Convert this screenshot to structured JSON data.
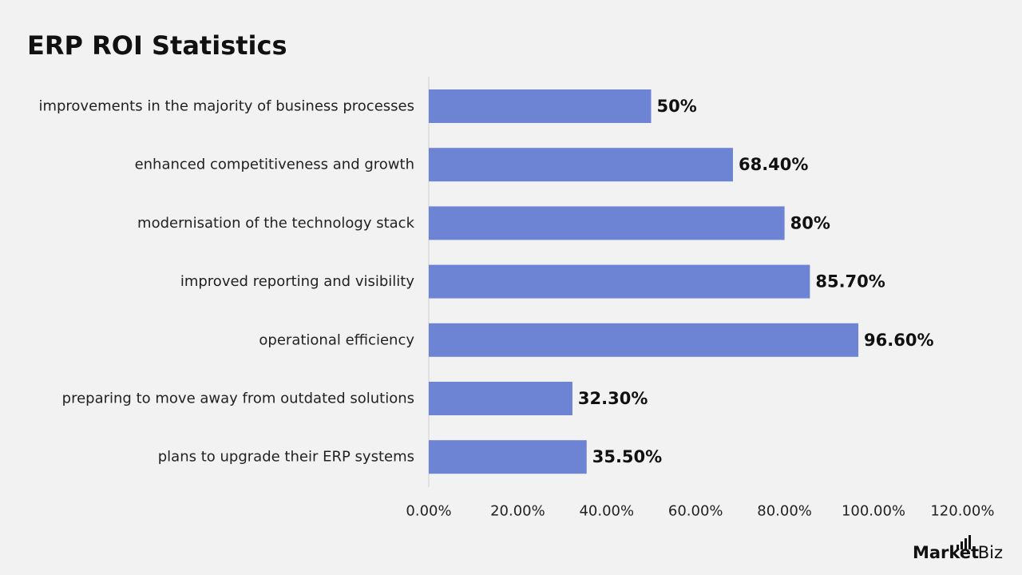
{
  "colors": {
    "background": "#f2f2f2",
    "bar": "#6d83d4",
    "text": "#111111",
    "axis": "#d0d0d0"
  },
  "brand": {
    "mark": "Market",
    "suffix": ".Biz"
  },
  "chart_data": {
    "type": "bar",
    "orientation": "horizontal",
    "title": "ERP ROI Statistics",
    "categories": [
      "improvements in the majority of business processes",
      "enhanced competitiveness and growth",
      "modernisation of the technology stack",
      "improved reporting and visibility",
      "operational efficiency",
      "preparing to move away from outdated solutions",
      "plans to upgrade their ERP systems"
    ],
    "values": [
      50,
      68.4,
      80,
      85.7,
      96.6,
      32.3,
      35.5
    ],
    "value_labels": [
      "50%",
      "68.40%",
      "80%",
      "85.70%",
      "96.60%",
      "32.30%",
      "35.50%"
    ],
    "xlim": [
      0,
      120
    ],
    "x_ticks": [
      0,
      20,
      40,
      60,
      80,
      100,
      120
    ],
    "x_tick_labels": [
      "0.00%",
      "20.00%",
      "40.00%",
      "60.00%",
      "80.00%",
      "100.00%",
      "120.00%"
    ],
    "grid": false,
    "legend": "none"
  }
}
